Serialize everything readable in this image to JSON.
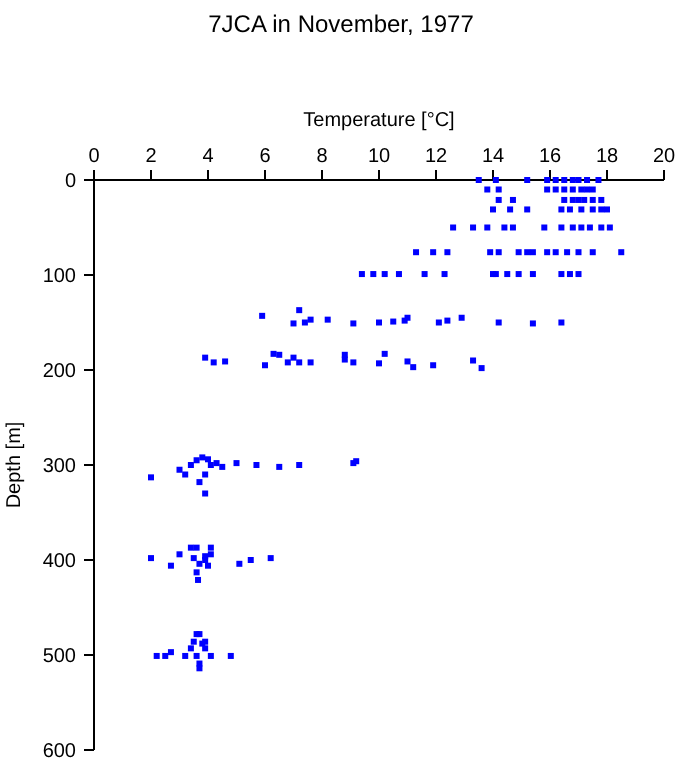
{
  "chart_data": {
    "type": "scatter",
    "title": "7JCA in November, 1977",
    "xlabel": "Temperature [°C]",
    "ylabel": "Depth [m]",
    "xlim": [
      0,
      20
    ],
    "xticks": [
      0,
      2,
      4,
      6,
      8,
      10,
      12,
      14,
      16,
      18,
      20
    ],
    "ylim": [
      600,
      0
    ],
    "yticks": [
      0,
      100,
      200,
      300,
      400,
      500,
      600
    ],
    "marker": "square",
    "series": [
      {
        "color": "#0000ff",
        "x": [
          13.5,
          14.1,
          15.2,
          15.9,
          16.2,
          16.5,
          16.8,
          17.0,
          17.3,
          17.7,
          13.8,
          14.2,
          15.9,
          16.2,
          16.5,
          16.8,
          17.1,
          17.3,
          17.5,
          14.2,
          14.7,
          16.5,
          16.8,
          17.0,
          17.2,
          17.5,
          17.8,
          14.0,
          14.6,
          15.2,
          16.4,
          16.7,
          17.1,
          17.5,
          17.8,
          18.0,
          12.6,
          13.3,
          13.8,
          14.4,
          14.7,
          15.8,
          16.4,
          16.8,
          17.1,
          17.4,
          17.8,
          18.1,
          11.3,
          11.9,
          12.4,
          13.9,
          14.2,
          14.9,
          15.2,
          15.4,
          15.9,
          16.2,
          16.6,
          17.0,
          17.5,
          18.5,
          9.4,
          9.8,
          10.2,
          10.7,
          11.6,
          12.3,
          14.0,
          14.1,
          14.5,
          14.9,
          15.4,
          16.4,
          16.7,
          17.0,
          5.9,
          7.0,
          7.2,
          7.4,
          7.6,
          8.2,
          9.1,
          10.0,
          10.5,
          10.9,
          11.0,
          12.1,
          12.4,
          12.9,
          14.2,
          15.4,
          16.4,
          3.9,
          4.2,
          4.6,
          6.0,
          6.3,
          6.5,
          6.8,
          7.0,
          7.2,
          7.6,
          8.8,
          8.8,
          9.1,
          10.0,
          10.2,
          11.0,
          11.2,
          11.9,
          13.3,
          13.6,
          2.0,
          3.0,
          3.2,
          3.4,
          3.6,
          3.8,
          4.0,
          4.1,
          4.3,
          4.5,
          3.9,
          3.7,
          3.9,
          5.0,
          5.7,
          6.5,
          7.2,
          9.1,
          9.2,
          2.0,
          2.7,
          3.0,
          3.4,
          3.6,
          3.5,
          3.6,
          3.65,
          3.7,
          3.9,
          3.9,
          4.1,
          4.1,
          4.0,
          5.1,
          5.5,
          6.2,
          2.2,
          2.5,
          2.7,
          3.2,
          3.4,
          3.5,
          3.6,
          3.7,
          3.8,
          3.9,
          3.6,
          3.9,
          4.1,
          3.7,
          3.7,
          4.8
        ],
        "values": [
          0,
          0,
          0,
          0,
          0,
          0,
          0,
          0,
          0,
          0,
          10,
          10,
          10,
          10,
          10,
          10,
          10,
          10,
          10,
          21,
          21,
          21,
          21,
          21,
          21,
          21,
          21,
          31,
          31,
          31,
          31,
          31,
          31,
          31,
          31,
          31,
          50,
          50,
          50,
          50,
          50,
          50,
          50,
          50,
          50,
          50,
          50,
          50,
          76,
          76,
          76,
          76,
          76,
          76,
          76,
          76,
          76,
          76,
          76,
          76,
          76,
          76,
          99,
          99,
          99,
          99,
          99,
          99,
          99,
          99,
          99,
          99,
          99,
          99,
          99,
          99,
          143,
          151,
          137,
          150,
          147,
          147,
          151,
          150,
          149,
          148,
          145,
          150,
          148,
          145,
          150,
          151,
          150,
          187,
          192,
          191,
          195,
          183,
          184,
          192,
          187,
          192,
          192,
          184,
          189,
          192,
          193,
          183,
          191,
          197,
          195,
          190,
          198,
          313,
          305,
          310,
          300,
          295,
          292,
          294,
          300,
          298,
          302,
          310,
          318,
          330,
          298,
          300,
          302,
          300,
          298,
          296,
          398,
          406,
          394,
          387,
          387,
          398,
          413,
          421,
          404,
          396,
          400,
          394,
          387,
          406,
          404,
          400,
          398,
          501,
          501,
          497,
          501,
          493,
          486,
          478,
          478,
          488,
          493,
          501,
          486,
          501,
          509,
          514,
          501
        ]
      }
    ]
  }
}
